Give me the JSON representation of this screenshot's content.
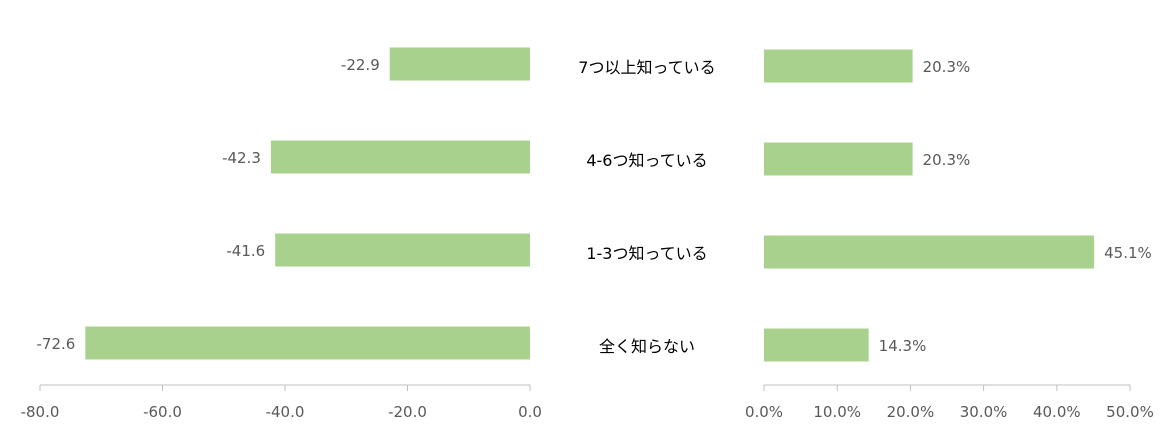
{
  "chart_data": [
    {
      "type": "bar",
      "orientation": "horizontal",
      "categories": [
        "7つ以上知っている",
        "4-6つ知っている",
        "1-3つ知っている",
        "全く知らない"
      ],
      "values": [
        -22.9,
        -42.3,
        -41.6,
        -72.6
      ],
      "value_labels": [
        "-22.9",
        "-42.3",
        "-41.6",
        "-72.6"
      ],
      "xlim": [
        -80,
        0
      ],
      "ticks": [
        -80,
        -60,
        -40,
        -20,
        0
      ],
      "tick_labels": [
        "-80.0",
        "-60.0",
        "-40.0",
        "-20.0",
        "0.0"
      ],
      "grid": false,
      "color": "#a9d18e"
    },
    {
      "type": "bar",
      "orientation": "horizontal",
      "categories": [
        "7つ以上知っている",
        "4-6つ知っている",
        "1-3つ知っている",
        "全く知らない"
      ],
      "values": [
        20.3,
        20.3,
        45.1,
        14.3
      ],
      "value_labels": [
        "20.3%",
        "20.3%",
        "45.1%",
        "14.3%"
      ],
      "xlim": [
        0,
        50
      ],
      "ticks": [
        0,
        10,
        20,
        30,
        40,
        50
      ],
      "tick_labels": [
        "0.0%",
        "10.0%",
        "20.0%",
        "30.0%",
        "40.0%",
        "50.0%"
      ],
      "grid": false,
      "color": "#a9d18e"
    }
  ],
  "colors": {
    "bar": "#a9d18e",
    "axis": "#bfbfbf",
    "tick_text": "#595959",
    "category_text": "#000000"
  }
}
